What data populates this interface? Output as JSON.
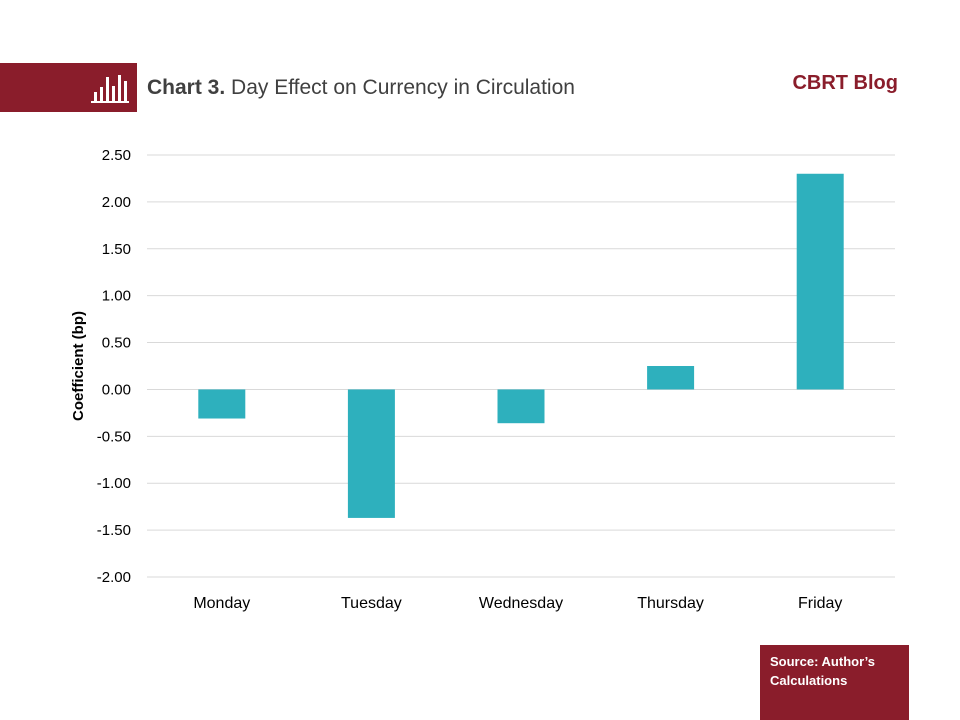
{
  "header": {
    "title_lead": "Chart 3.",
    "title_rest": "Day Effect on Currency in Circulation",
    "brand": "CBRT Blog",
    "icon": "bar-chart-icon"
  },
  "source": "Source: Author’s Calculations",
  "colors": {
    "accent": "#8a1d2b",
    "bar": "#2eb0bd",
    "grid": "#d9d9d9"
  },
  "chart_data": {
    "type": "bar",
    "categories": [
      "Monday",
      "Tuesday",
      "Wednesday",
      "Thursday",
      "Friday"
    ],
    "values": [
      -0.31,
      -1.37,
      -0.36,
      0.25,
      2.3
    ],
    "ylabel": "Coefficient (bp)",
    "ylim": [
      -2.0,
      2.5
    ],
    "yticks": [
      "2.50",
      "2.00",
      "1.50",
      "1.00",
      "0.50",
      "0.00",
      "-0.50",
      "-1.00",
      "-1.50",
      "-2.00"
    ],
    "grid": true,
    "legend": "none"
  }
}
